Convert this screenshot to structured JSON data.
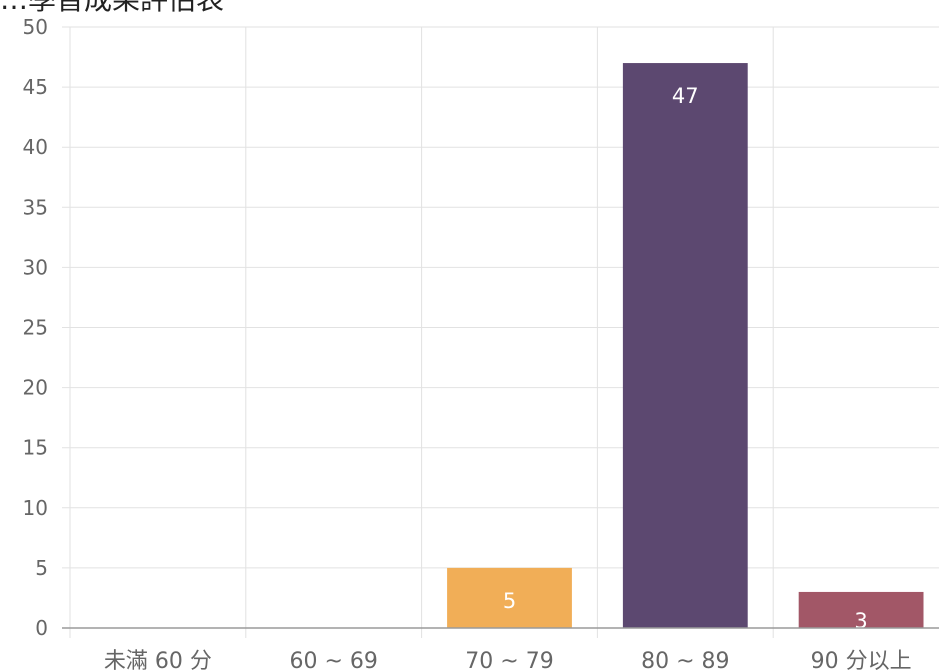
{
  "chart_data": {
    "type": "bar",
    "title": "…學習成果評估表",
    "xlabel": "",
    "ylabel": "",
    "categories": [
      "未滿 60 分",
      "60 ~ 69",
      "70 ~ 79",
      "80 ~ 89",
      "90 分以上"
    ],
    "values": [
      0,
      0,
      5,
      47,
      3
    ],
    "data_labels": [
      "",
      "",
      "5",
      "47",
      "3"
    ],
    "bar_colors": [
      "#f1ae57",
      "#f1ae57",
      "#f1ae57",
      "#5c4870",
      "#a25767"
    ],
    "ylim": [
      0,
      50
    ],
    "yticks": [
      "0",
      "5",
      "10",
      "15",
      "20",
      "25",
      "30",
      "35",
      "40",
      "45",
      "50"
    ],
    "grid": true,
    "legend": "none"
  }
}
